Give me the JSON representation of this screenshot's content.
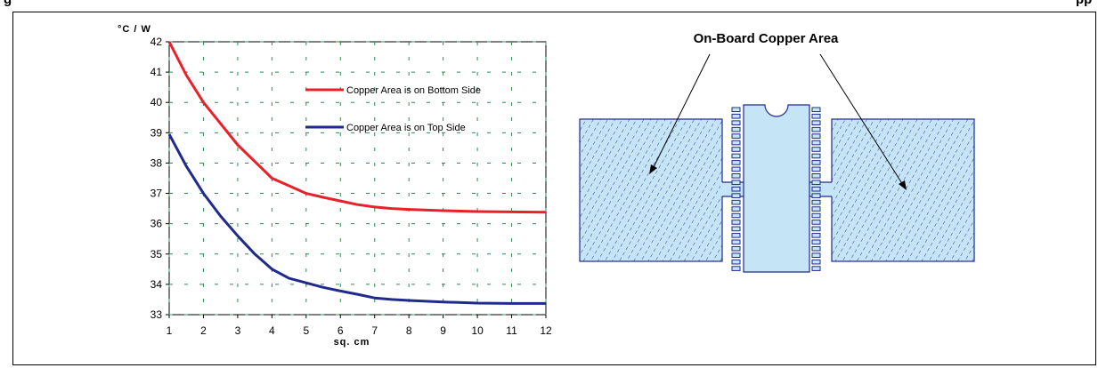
{
  "figure": {
    "cut_title_left": "g",
    "cut_title_right": "pp"
  },
  "chart_data": {
    "type": "line",
    "ylabel": "°C / W",
    "xlabel": "sq. cm",
    "xlim": [
      1,
      12
    ],
    "ylim": [
      33,
      42
    ],
    "xticks": [
      1,
      2,
      3,
      4,
      5,
      6,
      7,
      8,
      9,
      10,
      11,
      12
    ],
    "yticks": [
      33,
      34,
      35,
      36,
      37,
      38,
      39,
      40,
      41,
      42
    ],
    "grid": true,
    "legend_position": "top-right",
    "series": [
      {
        "name": "Copper Area is on Bottom Side",
        "color": "#e8202a",
        "x": [
          1,
          1.5,
          2,
          2.5,
          3,
          3.5,
          4,
          4.5,
          5,
          5.5,
          6,
          6.5,
          7,
          7.5,
          8,
          9,
          10,
          11,
          12
        ],
        "y": [
          42.0,
          40.9,
          40.0,
          39.3,
          38.6,
          38.05,
          37.5,
          37.25,
          37.0,
          36.87,
          36.75,
          36.63,
          36.55,
          36.5,
          36.47,
          36.43,
          36.4,
          36.39,
          36.38
        ]
      },
      {
        "name": "Copper Area is on Top Side",
        "color": "#1f2a8c",
        "x": [
          1,
          1.5,
          2,
          2.5,
          3,
          3.5,
          4,
          4.5,
          5,
          5.5,
          6,
          6.5,
          7,
          7.5,
          8,
          9,
          10,
          11,
          12
        ],
        "y": [
          38.95,
          37.9,
          37.0,
          36.25,
          35.6,
          35.0,
          34.5,
          34.2,
          34.05,
          33.9,
          33.78,
          33.67,
          33.55,
          33.5,
          33.47,
          33.42,
          33.38,
          33.37,
          33.37
        ]
      }
    ]
  },
  "diagram": {
    "title": "On-Board Copper Area",
    "fill_color": "#c5e4f5",
    "stroke_color": "#1f2a8c"
  }
}
